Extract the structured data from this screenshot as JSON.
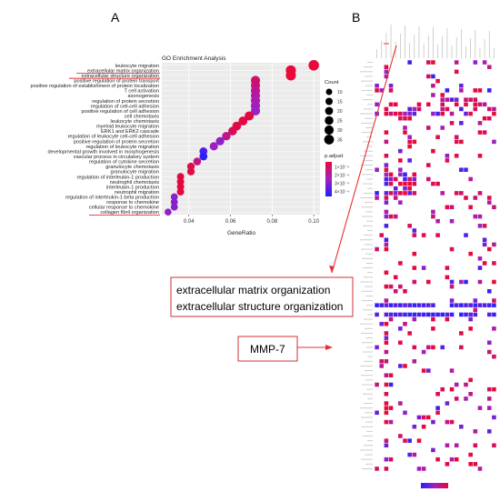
{
  "panels": {
    "a": "A",
    "b": "B"
  },
  "chart_data": [
    {
      "type": "scatter",
      "title": "GO Enrichment Analysis",
      "xlabel": "GeneRatio",
      "xlim": [
        0.027,
        0.103
      ],
      "xticks": [
        "0.04",
        "0.06",
        "0.08",
        "0.10"
      ],
      "xtick_values": [
        0.04,
        0.06,
        0.08,
        0.1
      ],
      "grid": true,
      "categories": [
        "leukocyte migration",
        "extracellular matrix organization",
        "extracellular structure organization",
        "positive regulation of protein transport",
        "positive regulation of establishment of protein localization",
        "T cell activation",
        "axonogenesis",
        "regulation of protein secretion",
        "regulation of cell-cell adhesion",
        "positive regulation of cell adhesion",
        "cell chemotaxis",
        "leukocyte chemotaxis",
        "myeloid leukocyte migration",
        "ERK1 and ERK2 cascade",
        "regulation of leukocyte cell-cell adhesion",
        "positive regulation of protein secretion",
        "regulation of leukocyte migration",
        "developmental growth involved in morphogenesis",
        "vascular process in circulatory system",
        "regulation of cytokine secretion",
        "granulocyte chemotaxis",
        "granulocyte migration",
        "regulation of interleukin-1 production",
        "neutrophil chemotaxis",
        "interleukin-1 production",
        "neutrophil migration",
        "regulation of interleukin-1 beta production",
        "response to chemokine",
        "cellular response to chemokine",
        "collagen fibril organization"
      ],
      "points": [
        {
          "x": 0.1,
          "count": 37,
          "padj": 1
        },
        {
          "x": 0.089,
          "count": 33,
          "padj": 1
        },
        {
          "x": 0.089,
          "count": 33,
          "padj": 1
        },
        {
          "x": 0.072,
          "count": 26,
          "padj": 1.6
        },
        {
          "x": 0.072,
          "count": 26,
          "padj": 1.8
        },
        {
          "x": 0.072,
          "count": 26,
          "padj": 2.1
        },
        {
          "x": 0.072,
          "count": 26,
          "padj": 2.3
        },
        {
          "x": 0.072,
          "count": 26,
          "padj": 2.5
        },
        {
          "x": 0.072,
          "count": 26,
          "padj": 2.6
        },
        {
          "x": 0.072,
          "count": 26,
          "padj": 2.8
        },
        {
          "x": 0.069,
          "count": 25,
          "padj": 1.1
        },
        {
          "x": 0.066,
          "count": 24,
          "padj": 1.1
        },
        {
          "x": 0.063,
          "count": 23,
          "padj": 1.2
        },
        {
          "x": 0.061,
          "count": 22,
          "padj": 1.4
        },
        {
          "x": 0.058,
          "count": 21,
          "padj": 2.0
        },
        {
          "x": 0.055,
          "count": 20,
          "padj": 3.0
        },
        {
          "x": 0.052,
          "count": 19,
          "padj": 2.8
        },
        {
          "x": 0.047,
          "count": 17,
          "padj": 3.9
        },
        {
          "x": 0.047,
          "count": 17,
          "padj": 4.3
        },
        {
          "x": 0.044,
          "count": 16,
          "padj": 1.9
        },
        {
          "x": 0.041,
          "count": 15,
          "padj": 1.2
        },
        {
          "x": 0.041,
          "count": 15,
          "padj": 1.2
        },
        {
          "x": 0.036,
          "count": 13,
          "padj": 1.1
        },
        {
          "x": 0.036,
          "count": 13,
          "padj": 1.1
        },
        {
          "x": 0.036,
          "count": 13,
          "padj": 1.1
        },
        {
          "x": 0.036,
          "count": 13,
          "padj": 1.1
        },
        {
          "x": 0.033,
          "count": 12,
          "padj": 3.0
        },
        {
          "x": 0.033,
          "count": 12,
          "padj": 3.1
        },
        {
          "x": 0.033,
          "count": 12,
          "padj": 3.1
        },
        {
          "x": 0.03,
          "count": 11,
          "padj": 3.0
        }
      ],
      "highlighted": [
        "extracellular matrix organization",
        "extracellular structure organization",
        "collagen fibril organization"
      ],
      "size_legend": {
        "title": "Count",
        "values": [
          10,
          15,
          20,
          25,
          30,
          35
        ]
      },
      "color_legend": {
        "title": "p.adjust",
        "labels": [
          "1×10⁻⁴",
          "2×10⁻⁴",
          "3×10⁻⁴",
          "4×10⁻⁴"
        ],
        "colors": {
          "low": "#e8083a",
          "mid": "#a020c0",
          "high": "#2020ff"
        }
      }
    },
    {
      "type": "heatmap",
      "rows": 88,
      "cols": 26,
      "cell_color": "#e8083a",
      "highlight_row_color": "#2020ff",
      "highlight_column_index": 2
    }
  ],
  "callouts": {
    "box1_line1": "extracellular matrix organization",
    "box1_line2": "extracellular structure organization",
    "box2": "MMP-7"
  },
  "colors": {
    "accent_red": "#e8083a",
    "arrow_red": "#e53030",
    "box_border": "#d03030"
  }
}
